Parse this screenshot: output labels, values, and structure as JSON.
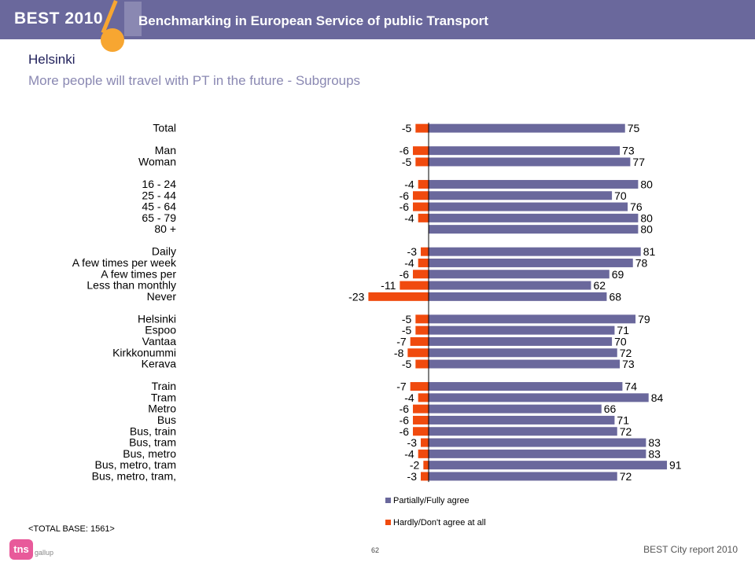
{
  "header": {
    "brand": "BEST 2010",
    "title": "Benchmarking in European Service of public Transport"
  },
  "page": {
    "title": "Helsinki",
    "subtitle": "More people will travel with PT in the future - Subgroups"
  },
  "footer": {
    "base": "<TOTAL BASE: 1561>",
    "page_number": "62",
    "report": "BEST City report 2010",
    "logo": "tns",
    "logo_sub": "gallup"
  },
  "colors": {
    "agree": "#6a689c",
    "disagree": "#f04a0e",
    "header": "#6a689c",
    "accent": "#f7a631"
  },
  "chart_data": {
    "type": "bar",
    "orientation": "horizontal",
    "categories": [
      "Total",
      "Man",
      "Woman",
      "16 - 24",
      "25 - 44",
      "45 - 64",
      "65 - 79",
      "80 +",
      "Daily",
      "A few times per week",
      "A few times per",
      "Less than monthly",
      "Never",
      "Helsinki",
      "Espoo",
      "Vantaa",
      "Kirkkonummi",
      "Kerava",
      "Train",
      "Tram",
      "Metro",
      "Bus",
      "Bus, train",
      "Bus, tram",
      "Bus, metro",
      "Bus, metro, tram",
      "Bus, metro, tram,"
    ],
    "groups": [
      1,
      2,
      2,
      3,
      3,
      3,
      3,
      3,
      4,
      4,
      4,
      4,
      4,
      5,
      5,
      5,
      5,
      5,
      6,
      6,
      6,
      6,
      6,
      6,
      6,
      6,
      6
    ],
    "series": [
      {
        "name": "Partially/Fully agree",
        "values": [
          75,
          73,
          77,
          80,
          70,
          76,
          80,
          80,
          81,
          78,
          69,
          62,
          68,
          79,
          71,
          70,
          72,
          73,
          74,
          84,
          66,
          71,
          72,
          83,
          83,
          91,
          72
        ]
      },
      {
        "name": "Hardly/Don't agree at all",
        "values": [
          -5,
          -6,
          -5,
          -4,
          -6,
          -6,
          -4,
          null,
          -3,
          -4,
          -6,
          -11,
          -23,
          -5,
          -5,
          -7,
          -8,
          -5,
          -7,
          -4,
          -6,
          -6,
          -6,
          -3,
          -4,
          -2,
          -3
        ]
      }
    ],
    "legend_position": "bottom",
    "grid": false
  }
}
